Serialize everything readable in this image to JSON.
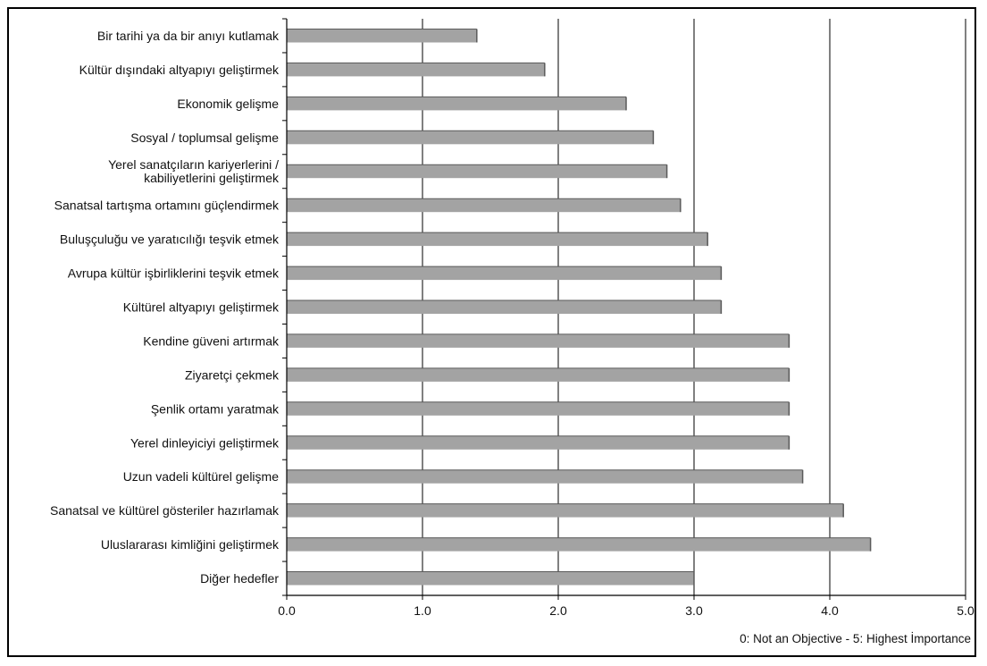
{
  "chart_data": {
    "type": "bar",
    "orientation": "horizontal",
    "categories": [
      "Bir tarihi ya da bir anıyı kutlamak",
      "Kültür dışındaki altyapıyı geliştirmek",
      "Ekonomik gelişme",
      "Sosyal / toplumsal gelişme",
      "Yerel sanatçıların kariyerlerini / kabiliyetlerini geliştirmek",
      "Sanatsal tartışma ortamını güçlendirmek",
      "Buluşçuluğu ve yaratıcılığı teşvik etmek",
      "Avrupa kültür işbirliklerini teşvik etmek",
      "Kültürel altyapıyı geliştirmek",
      "Kendine güveni artırmak",
      "Ziyaretçi çekmek",
      "Şenlik ortamı yaratmak",
      "Yerel dinleyiciyi geliştirmek",
      "Uzun vadeli kültürel gelişme",
      "Sanatsal ve kültürel gösteriler hazırlamak",
      "Uluslararası kimliğini geliştirmek",
      "Diğer hedefler"
    ],
    "category_lines": [
      [
        "Bir tarihi ya da bir anıyı kutlamak"
      ],
      [
        "Kültür dışındaki altyapıyı geliştirmek"
      ],
      [
        "Ekonomik gelişme"
      ],
      [
        "Sosyal / toplumsal gelişme"
      ],
      [
        "Yerel sanatçıların kariyerlerini /",
        "kabiliyetlerini geliştirmek"
      ],
      [
        "Sanatsal tartışma ortamını güçlendirmek"
      ],
      [
        "Buluşçuluğu ve yaratıcılığı teşvik etmek"
      ],
      [
        "Avrupa kültür işbirliklerini teşvik etmek"
      ],
      [
        "Kültürel altyapıyı geliştirmek"
      ],
      [
        "Kendine güveni artırmak"
      ],
      [
        "Ziyaretçi çekmek"
      ],
      [
        "Şenlik ortamı yaratmak"
      ],
      [
        "Yerel dinleyiciyi geliştirmek"
      ],
      [
        "Uzun vadeli kültürel gelişme"
      ],
      [
        "Sanatsal ve kültürel gösteriler hazırlamak"
      ],
      [
        "Uluslararası kimliğini geliştirmek"
      ],
      [
        "Diğer hedefler"
      ]
    ],
    "values": [
      1.4,
      1.9,
      2.5,
      2.7,
      2.8,
      2.9,
      3.1,
      3.2,
      3.2,
      3.7,
      3.7,
      3.7,
      3.7,
      3.8,
      4.1,
      4.3,
      3.0
    ],
    "xlim": [
      0,
      5
    ],
    "xticks": [
      0,
      1,
      2,
      3,
      4,
      5
    ],
    "xtick_labels": [
      "0.0",
      "1.0",
      "2.0",
      "3.0",
      "4.0",
      "5.0"
    ],
    "grid": "vertical",
    "title": "",
    "xlabel": "",
    "ylabel": "",
    "annotation": "0: Not an Objective - 5: Highest İmportance",
    "colors": {
      "bar": "#a3a3a3",
      "bar_edge": "#5a5a5a",
      "grid": "#000000",
      "axis": "#000000"
    }
  }
}
